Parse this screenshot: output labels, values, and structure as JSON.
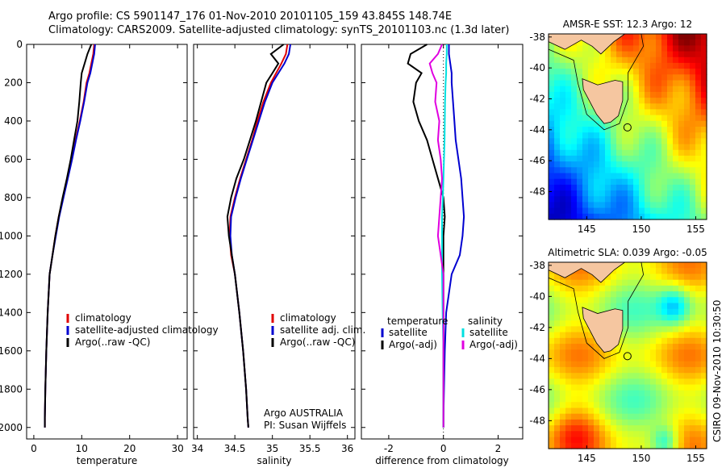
{
  "header": {
    "line1": "Argo profile: CS 5901147_176 01-Nov-2010 20101105_159 43.845S 148.74E",
    "line2": "Climatology: CARS2009. Satellite-adjusted climatology: synTS_20101103.nc (1.3d later)"
  },
  "stamp": "CSIRO 09-Nov-2010 10:30:50",
  "colors": {
    "climatology": "#e00000",
    "satellite": "#0000d0",
    "argo": "#000000",
    "satellite_salinity": "#00e0e0",
    "argo_adj_salinity": "#e000e0",
    "land": "#f5c6a0"
  },
  "chart_data": [
    {
      "type": "line",
      "id": "temperature",
      "xlabel": "temperature",
      "ylabel": "",
      "xlim": [
        -1.5,
        32
      ],
      "ylim": [
        2060,
        0
      ],
      "xticks": [
        0,
        10,
        20,
        30
      ],
      "yticks": [
        0,
        200,
        400,
        600,
        800,
        1000,
        1200,
        1400,
        1600,
        1800,
        2000
      ],
      "legend": [
        "climatology",
        "satellite-adjusted climatology",
        "Argo(..raw -QC)"
      ],
      "series": [
        {
          "name": "climatology",
          "color": "#e00000",
          "x": [
            12.6,
            12.4,
            12.0,
            11.6,
            11.0,
            10.4,
            9.6,
            8.7,
            7.9,
            7.0,
            6.1,
            5.2,
            4.5,
            3.9,
            3.3,
            2.9,
            2.6,
            2.4,
            2.3,
            2.3
          ],
          "y": [
            0,
            50,
            100,
            150,
            200,
            300,
            400,
            500,
            600,
            700,
            800,
            900,
            1000,
            1100,
            1200,
            1400,
            1600,
            1800,
            1950,
            2000
          ]
        },
        {
          "name": "satellite-adjusted climatology",
          "color": "#0000d0",
          "x": [
            12.8,
            12.6,
            12.2,
            11.8,
            11.2,
            10.5,
            9.7,
            8.8,
            8.0,
            7.1,
            6.2,
            5.3,
            4.6,
            3.9,
            3.3,
            2.9,
            2.6,
            2.4,
            2.3,
            2.3
          ],
          "y": [
            0,
            50,
            100,
            150,
            200,
            300,
            400,
            500,
            600,
            700,
            800,
            900,
            1000,
            1100,
            1200,
            1400,
            1600,
            1800,
            1950,
            2000
          ]
        },
        {
          "name": "Argo(..raw -QC)",
          "color": "#000000",
          "x": [
            12.0,
            11.2,
            10.6,
            10.0,
            9.8,
            9.5,
            9.1,
            8.4,
            7.7,
            6.9,
            6.0,
            5.2,
            4.5,
            3.9,
            3.3,
            2.9,
            2.6,
            2.4,
            2.3,
            2.3
          ],
          "y": [
            0,
            50,
            100,
            150,
            200,
            300,
            400,
            500,
            600,
            700,
            800,
            900,
            1000,
            1100,
            1200,
            1400,
            1600,
            1800,
            1950,
            2000
          ]
        }
      ]
    },
    {
      "type": "line",
      "id": "salinity",
      "xlabel": "salinity",
      "ylabel": "",
      "xlim": [
        33.95,
        36.1
      ],
      "ylim": [
        2060,
        0
      ],
      "xticks": [
        34,
        34.5,
        35,
        35.5,
        36
      ],
      "xticklabels": [
        "34",
        "34.5",
        "35",
        "35.5",
        "36"
      ],
      "legend": [
        "climatology",
        "satellite adj. clim.",
        "Argo(..raw -QC)"
      ],
      "annotation": [
        "Argo AUSTRALIA",
        "PI: Susan Wijffels"
      ],
      "series": [
        {
          "name": "climatology",
          "color": "#e00000",
          "x": [
            35.2,
            35.18,
            35.12,
            35.05,
            34.98,
            34.88,
            34.8,
            34.73,
            34.65,
            34.57,
            34.5,
            34.44,
            34.43,
            34.45,
            34.5,
            34.56,
            34.61,
            34.65,
            34.67,
            34.68
          ],
          "y": [
            0,
            50,
            100,
            150,
            200,
            300,
            400,
            500,
            600,
            700,
            800,
            900,
            1000,
            1100,
            1200,
            1400,
            1600,
            1800,
            1950,
            2000
          ]
        },
        {
          "name": "satellite adj. clim.",
          "color": "#0000d0",
          "x": [
            35.24,
            35.22,
            35.16,
            35.08,
            35.0,
            34.9,
            34.82,
            34.74,
            34.66,
            34.58,
            34.51,
            34.45,
            34.44,
            34.46,
            34.5,
            34.56,
            34.61,
            34.65,
            34.67,
            34.68
          ],
          "y": [
            0,
            50,
            100,
            150,
            200,
            300,
            400,
            500,
            600,
            700,
            800,
            900,
            1000,
            1100,
            1200,
            1400,
            1600,
            1800,
            1950,
            2000
          ]
        },
        {
          "name": "Argo(..raw -QC)",
          "color": "#000000",
          "x": [
            35.15,
            34.98,
            35.08,
            35.0,
            34.92,
            34.85,
            34.78,
            34.7,
            34.62,
            34.52,
            34.45,
            34.4,
            34.42,
            34.46,
            34.5,
            34.56,
            34.61,
            34.65,
            34.67,
            34.68
          ],
          "y": [
            0,
            50,
            100,
            150,
            200,
            300,
            400,
            500,
            600,
            700,
            800,
            900,
            1000,
            1100,
            1200,
            1400,
            1600,
            1800,
            1950,
            2000
          ]
        }
      ]
    },
    {
      "type": "line",
      "id": "difference",
      "xlabel": "difference from climatology",
      "ylabel": "",
      "xlim": [
        -3.0,
        2.9
      ],
      "ylim": [
        2060,
        0
      ],
      "xticks": [
        -2,
        0,
        2
      ],
      "legend_groups": [
        {
          "title": "temperature",
          "items": [
            "satellite",
            "Argo(-adj)"
          ]
        },
        {
          "title": "salinity",
          "items": [
            "satellite",
            "Argo(-adj)"
          ]
        }
      ],
      "series": [
        {
          "name": "satellite",
          "color": "#0000d0",
          "x": [
            0.2,
            0.2,
            0.25,
            0.3,
            0.3,
            0.35,
            0.4,
            0.45,
            0.55,
            0.65,
            0.7,
            0.75,
            0.7,
            0.6,
            0.3,
            0.1,
            0.05,
            0.02,
            0.0,
            0.0
          ],
          "y": [
            0,
            50,
            100,
            150,
            200,
            300,
            400,
            500,
            600,
            700,
            800,
            900,
            1000,
            1100,
            1200,
            1400,
            1600,
            1800,
            1950,
            2000
          ]
        },
        {
          "name": "Argo(-adj)",
          "color": "#000000",
          "x": [
            -0.6,
            -1.2,
            -1.3,
            -0.8,
            -1.0,
            -1.1,
            -0.9,
            -0.6,
            -0.4,
            -0.2,
            0.0,
            0.05,
            0.0,
            0.0,
            0.0,
            0.0,
            0.0,
            0.0,
            0.0,
            0.0
          ],
          "y": [
            0,
            50,
            100,
            150,
            200,
            300,
            400,
            500,
            600,
            700,
            800,
            900,
            1000,
            1100,
            1200,
            1400,
            1600,
            1800,
            1950,
            2000
          ]
        },
        {
          "name": "satellite",
          "color": "#00e0e0",
          "x": [
            0.12,
            0.12,
            0.1,
            0.1,
            0.08,
            0.06,
            0.05,
            0.04,
            0.02,
            0.0,
            -0.02,
            -0.05,
            -0.05,
            -0.05,
            -0.05,
            -0.03,
            0.0,
            0.0,
            0.0,
            0.0
          ],
          "y": [
            0,
            50,
            100,
            150,
            200,
            300,
            400,
            500,
            600,
            700,
            800,
            900,
            1000,
            1100,
            1200,
            1400,
            1600,
            1800,
            1950,
            2000
          ]
        },
        {
          "name": "Argo(-adj)",
          "color": "#e000e0",
          "x": [
            -0.05,
            -0.2,
            -0.5,
            -0.4,
            -0.25,
            -0.3,
            -0.15,
            -0.2,
            -0.1,
            -0.05,
            -0.1,
            -0.15,
            -0.2,
            -0.1,
            0.0,
            0.0,
            0.0,
            0.0,
            0.0,
            0.0
          ],
          "y": [
            0,
            50,
            100,
            150,
            200,
            300,
            400,
            500,
            600,
            700,
            800,
            900,
            1000,
            1100,
            1200,
            1400,
            1600,
            1800,
            1950,
            2000
          ]
        }
      ]
    },
    {
      "type": "heatmap",
      "id": "sst-map",
      "title": "AMSR-E SST: 12.3 Argo: 12",
      "xlim": [
        141.5,
        156
      ],
      "ylim": [
        -49.8,
        -37.8
      ],
      "xticks": [
        145,
        150,
        155
      ],
      "yticks": [
        -38,
        -40,
        -42,
        -44,
        -46,
        -48
      ],
      "marker": {
        "lon": 148.74,
        "lat": -43.845
      },
      "description": "warm (red) north-east, cooler (green) mid, cold (blue) south-west"
    },
    {
      "type": "heatmap",
      "id": "sla-map",
      "title": "Altimetric SLA: 0.039 Argo: -0.05",
      "xlim": [
        141.5,
        156
      ],
      "ylim": [
        -49.8,
        -37.8
      ],
      "xticks": [
        145,
        150,
        155
      ],
      "yticks": [
        -38,
        -40,
        -42,
        -44,
        -46,
        -48
      ],
      "marker": {
        "lon": 148.74,
        "lat": -43.845
      },
      "description": "mostly green field with scattered blue and yellow eddies"
    }
  ]
}
